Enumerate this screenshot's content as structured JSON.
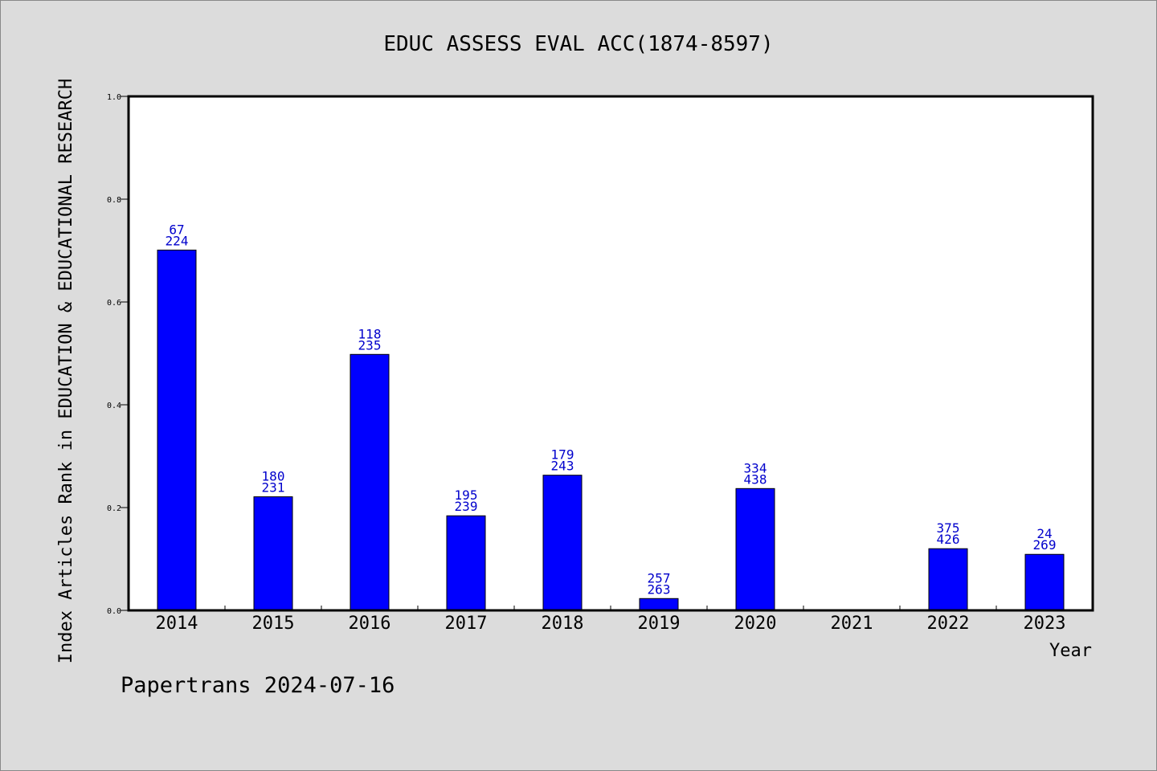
{
  "chart_data": {
    "type": "bar",
    "title": "EDUC ASSESS EVAL ACC(1874-8597)",
    "xlabel": "Year",
    "ylabel": "Index Articles Rank in EDUCATION & EDUCATIONAL RESEARCH",
    "ylim": [
      0,
      1.0
    ],
    "yticks": [
      "0.0",
      "0.2",
      "0.4",
      "0.6",
      "0.8",
      "1.0"
    ],
    "categories": [
      "2014",
      "2015",
      "2016",
      "2017",
      "2018",
      "2019",
      "2020",
      "2021",
      "2022",
      "2023"
    ],
    "values": [
      0.701,
      0.221,
      0.498,
      0.184,
      0.263,
      0.023,
      0.237,
      null,
      0.12,
      0.109
    ],
    "labels_top": [
      "67",
      "180",
      "118",
      "195",
      "179",
      "257",
      "334",
      "",
      "375",
      "24"
    ],
    "labels_bottom": [
      "224",
      "231",
      "235",
      "239",
      "243",
      "263",
      "438",
      "",
      "426",
      "269"
    ],
    "bar_color": "#0000ff",
    "label_color": "#0000cc",
    "grid": false
  },
  "footer": "Papertrans 2024-07-16"
}
